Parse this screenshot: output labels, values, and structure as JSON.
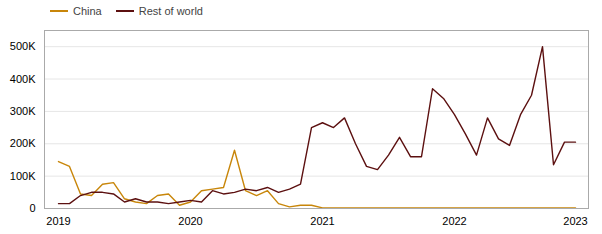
{
  "chart_data": {
    "type": "line",
    "categories": [
      "2019",
      null,
      null,
      null,
      null,
      null,
      null,
      null,
      null,
      null,
      null,
      null,
      "2020",
      null,
      null,
      null,
      null,
      null,
      null,
      null,
      null,
      null,
      null,
      null,
      "2021",
      null,
      null,
      null,
      null,
      null,
      null,
      null,
      null,
      null,
      null,
      null,
      "2022",
      null,
      null,
      null,
      null,
      null,
      null,
      null,
      null,
      null,
      null,
      "2023"
    ],
    "series": [
      {
        "name": "China",
        "color": "#c8860a",
        "values": [
          145000,
          130000,
          45000,
          40000,
          75000,
          80000,
          30000,
          20000,
          15000,
          40000,
          45000,
          10000,
          20000,
          55000,
          60000,
          65000,
          180000,
          55000,
          40000,
          55000,
          15000,
          5000,
          10000,
          10000,
          2000,
          2000,
          2000,
          2000,
          2000,
          2000,
          2000,
          2000,
          2000,
          2000,
          2000,
          2000,
          2000,
          2000,
          2000,
          2000,
          2000,
          2000,
          2000,
          2000,
          2000,
          2000,
          2000,
          2000
        ]
      },
      {
        "name": "Rest of world",
        "color": "#5c1010",
        "values": [
          15000,
          15000,
          40000,
          50000,
          50000,
          45000,
          20000,
          30000,
          20000,
          20000,
          15000,
          20000,
          25000,
          20000,
          55000,
          45000,
          50000,
          60000,
          55000,
          65000,
          50000,
          60000,
          75000,
          250000,
          265000,
          250000,
          280000,
          200000,
          130000,
          120000,
          165000,
          220000,
          160000,
          160000,
          370000,
          340000,
          290000,
          230000,
          165000,
          280000,
          215000,
          195000,
          290000,
          350000,
          500000,
          135000,
          205000,
          205000
        ]
      }
    ],
    "ylim": [
      0,
      550000
    ],
    "yticks": [
      0,
      {
        "value": 100000,
        "label": "100K"
      },
      {
        "value": 200000,
        "label": "200K"
      },
      {
        "value": 300000,
        "label": "300K"
      },
      {
        "value": 400000,
        "label": "400K"
      },
      {
        "value": 500000,
        "label": "500K"
      }
    ],
    "grid": true,
    "legend": "upper left"
  }
}
